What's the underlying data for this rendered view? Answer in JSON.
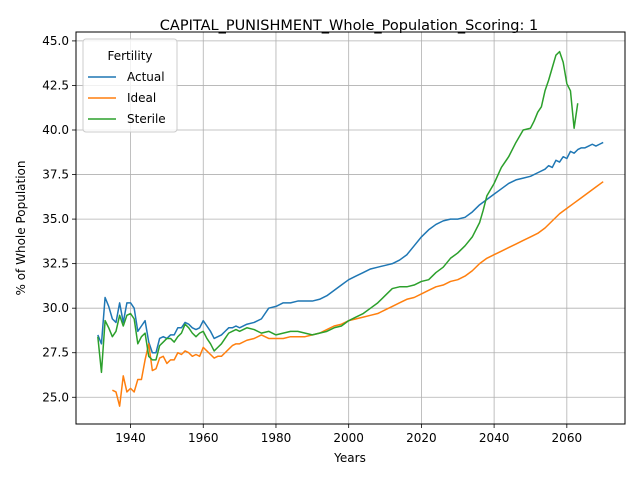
{
  "chart_data": {
    "type": "line",
    "title": "CAPITAL_PUNISHMENT_Whole_Population_Scoring: 1",
    "xlabel": "Years",
    "ylabel": "% of Whole Population",
    "xlim": [
      1925,
      2076
    ],
    "ylim": [
      23.5,
      45.5
    ],
    "xticks": [
      1940,
      1960,
      1980,
      2000,
      2020,
      2040,
      2060
    ],
    "yticks": [
      25.0,
      27.5,
      30.0,
      32.5,
      35.0,
      37.5,
      40.0,
      42.5,
      45.0
    ],
    "ytick_labels": [
      "25.0",
      "27.5",
      "30.0",
      "32.5",
      "35.0",
      "37.5",
      "40.0",
      "42.5",
      "45.0"
    ],
    "grid": true,
    "legend": {
      "title": "Fertility",
      "placement": "top-left"
    },
    "series": [
      {
        "name": "Actual",
        "color": "#1f77b4",
        "points": [
          [
            1931,
            28.5
          ],
          [
            1932,
            28.0
          ],
          [
            1933,
            30.6
          ],
          [
            1934,
            30.1
          ],
          [
            1935,
            29.4
          ],
          [
            1936,
            29.2
          ],
          [
            1937,
            30.3
          ],
          [
            1938,
            29.2
          ],
          [
            1939,
            30.3
          ],
          [
            1940,
            30.3
          ],
          [
            1941,
            30.0
          ],
          [
            1942,
            28.7
          ],
          [
            1943,
            29.0
          ],
          [
            1944,
            29.3
          ],
          [
            1945,
            28.1
          ],
          [
            1946,
            27.5
          ],
          [
            1947,
            27.5
          ],
          [
            1948,
            28.3
          ],
          [
            1949,
            28.4
          ],
          [
            1950,
            28.3
          ],
          [
            1951,
            28.5
          ],
          [
            1952,
            28.5
          ],
          [
            1953,
            28.9
          ],
          [
            1954,
            28.9
          ],
          [
            1955,
            29.2
          ],
          [
            1956,
            29.1
          ],
          [
            1957,
            28.9
          ],
          [
            1958,
            28.8
          ],
          [
            1959,
            28.9
          ],
          [
            1960,
            29.3
          ],
          [
            1961,
            29.0
          ],
          [
            1962,
            28.7
          ],
          [
            1963,
            28.3
          ],
          [
            1964,
            28.4
          ],
          [
            1965,
            28.5
          ],
          [
            1966,
            28.7
          ],
          [
            1967,
            28.9
          ],
          [
            1968,
            28.9
          ],
          [
            1969,
            29.0
          ],
          [
            1970,
            28.9
          ],
          [
            1972,
            29.1
          ],
          [
            1974,
            29.2
          ],
          [
            1976,
            29.4
          ],
          [
            1978,
            30.0
          ],
          [
            1980,
            30.1
          ],
          [
            1982,
            30.3
          ],
          [
            1984,
            30.3
          ],
          [
            1986,
            30.4
          ],
          [
            1988,
            30.4
          ],
          [
            1990,
            30.4
          ],
          [
            1992,
            30.5
          ],
          [
            1994,
            30.7
          ],
          [
            1996,
            31.0
          ],
          [
            1998,
            31.3
          ],
          [
            2000,
            31.6
          ],
          [
            2002,
            31.8
          ],
          [
            2004,
            32.0
          ],
          [
            2006,
            32.2
          ],
          [
            2008,
            32.3
          ],
          [
            2010,
            32.4
          ],
          [
            2012,
            32.5
          ],
          [
            2014,
            32.7
          ],
          [
            2016,
            33.0
          ],
          [
            2018,
            33.5
          ],
          [
            2020,
            34.0
          ],
          [
            2022,
            34.4
          ],
          [
            2024,
            34.7
          ],
          [
            2026,
            34.9
          ],
          [
            2028,
            35.0
          ],
          [
            2030,
            35.0
          ],
          [
            2032,
            35.1
          ],
          [
            2034,
            35.4
          ],
          [
            2036,
            35.8
          ],
          [
            2038,
            36.1
          ],
          [
            2040,
            36.4
          ],
          [
            2042,
            36.7
          ],
          [
            2044,
            37.0
          ],
          [
            2046,
            37.2
          ],
          [
            2048,
            37.3
          ],
          [
            2050,
            37.4
          ],
          [
            2052,
            37.6
          ],
          [
            2054,
            37.8
          ],
          [
            2055,
            38.0
          ],
          [
            2056,
            37.9
          ],
          [
            2057,
            38.3
          ],
          [
            2058,
            38.2
          ],
          [
            2059,
            38.5
          ],
          [
            2060,
            38.4
          ],
          [
            2061,
            38.8
          ],
          [
            2062,
            38.7
          ],
          [
            2063,
            38.9
          ],
          [
            2064,
            39.0
          ],
          [
            2065,
            39.0
          ],
          [
            2066,
            39.1
          ],
          [
            2067,
            39.2
          ],
          [
            2068,
            39.1
          ],
          [
            2069,
            39.2
          ],
          [
            2070,
            39.3
          ]
        ]
      },
      {
        "name": "Ideal",
        "color": "#ff7f0e",
        "points": [
          [
            1935,
            25.4
          ],
          [
            1936,
            25.3
          ],
          [
            1937,
            24.5
          ],
          [
            1938,
            26.2
          ],
          [
            1939,
            25.3
          ],
          [
            1940,
            25.5
          ],
          [
            1941,
            25.3
          ],
          [
            1942,
            26.0
          ],
          [
            1943,
            26.0
          ],
          [
            1944,
            27.1
          ],
          [
            1945,
            28.0
          ],
          [
            1946,
            26.5
          ],
          [
            1947,
            26.6
          ],
          [
            1948,
            27.2
          ],
          [
            1949,
            27.3
          ],
          [
            1950,
            26.9
          ],
          [
            1951,
            27.1
          ],
          [
            1952,
            27.1
          ],
          [
            1953,
            27.5
          ],
          [
            1954,
            27.4
          ],
          [
            1955,
            27.6
          ],
          [
            1956,
            27.5
          ],
          [
            1957,
            27.3
          ],
          [
            1958,
            27.4
          ],
          [
            1959,
            27.3
          ],
          [
            1960,
            27.8
          ],
          [
            1961,
            27.6
          ],
          [
            1962,
            27.4
          ],
          [
            1963,
            27.2
          ],
          [
            1964,
            27.3
          ],
          [
            1965,
            27.3
          ],
          [
            1966,
            27.5
          ],
          [
            1967,
            27.7
          ],
          [
            1968,
            27.9
          ],
          [
            1969,
            28.0
          ],
          [
            1970,
            28.0
          ],
          [
            1972,
            28.2
          ],
          [
            1974,
            28.3
          ],
          [
            1976,
            28.5
          ],
          [
            1978,
            28.3
          ],
          [
            1980,
            28.3
          ],
          [
            1982,
            28.3
          ],
          [
            1984,
            28.4
          ],
          [
            1986,
            28.4
          ],
          [
            1988,
            28.4
          ],
          [
            1990,
            28.5
          ],
          [
            1992,
            28.6
          ],
          [
            1994,
            28.8
          ],
          [
            1996,
            29.0
          ],
          [
            1998,
            29.1
          ],
          [
            2000,
            29.3
          ],
          [
            2002,
            29.4
          ],
          [
            2004,
            29.5
          ],
          [
            2006,
            29.6
          ],
          [
            2008,
            29.7
          ],
          [
            2010,
            29.9
          ],
          [
            2012,
            30.1
          ],
          [
            2014,
            30.3
          ],
          [
            2016,
            30.5
          ],
          [
            2018,
            30.6
          ],
          [
            2020,
            30.8
          ],
          [
            2022,
            31.0
          ],
          [
            2024,
            31.2
          ],
          [
            2026,
            31.3
          ],
          [
            2028,
            31.5
          ],
          [
            2030,
            31.6
          ],
          [
            2032,
            31.8
          ],
          [
            2034,
            32.1
          ],
          [
            2036,
            32.5
          ],
          [
            2038,
            32.8
          ],
          [
            2040,
            33.0
          ],
          [
            2042,
            33.2
          ],
          [
            2044,
            33.4
          ],
          [
            2046,
            33.6
          ],
          [
            2048,
            33.8
          ],
          [
            2050,
            34.0
          ],
          [
            2052,
            34.2
          ],
          [
            2054,
            34.5
          ],
          [
            2056,
            34.9
          ],
          [
            2058,
            35.3
          ],
          [
            2060,
            35.6
          ],
          [
            2062,
            35.9
          ],
          [
            2064,
            36.2
          ],
          [
            2066,
            36.5
          ],
          [
            2068,
            36.8
          ],
          [
            2070,
            37.1
          ]
        ]
      },
      {
        "name": "Sterile",
        "color": "#2ca02c",
        "points": [
          [
            1931,
            28.4
          ],
          [
            1932,
            26.4
          ],
          [
            1933,
            29.3
          ],
          [
            1934,
            28.9
          ],
          [
            1935,
            28.4
          ],
          [
            1936,
            28.7
          ],
          [
            1937,
            29.6
          ],
          [
            1938,
            29.0
          ],
          [
            1939,
            29.6
          ],
          [
            1940,
            29.7
          ],
          [
            1941,
            29.4
          ],
          [
            1942,
            28.0
          ],
          [
            1943,
            28.4
          ],
          [
            1944,
            28.6
          ],
          [
            1945,
            27.3
          ],
          [
            1946,
            27.1
          ],
          [
            1947,
            27.1
          ],
          [
            1948,
            27.9
          ],
          [
            1949,
            28.1
          ],
          [
            1950,
            28.3
          ],
          [
            1951,
            28.3
          ],
          [
            1952,
            28.1
          ],
          [
            1953,
            28.4
          ],
          [
            1954,
            28.6
          ],
          [
            1955,
            29.1
          ],
          [
            1956,
            28.9
          ],
          [
            1957,
            28.6
          ],
          [
            1958,
            28.4
          ],
          [
            1959,
            28.6
          ],
          [
            1960,
            28.7
          ],
          [
            1961,
            28.3
          ],
          [
            1962,
            28.0
          ],
          [
            1963,
            27.6
          ],
          [
            1964,
            27.8
          ],
          [
            1965,
            28.0
          ],
          [
            1966,
            28.3
          ],
          [
            1967,
            28.6
          ],
          [
            1968,
            28.7
          ],
          [
            1969,
            28.8
          ],
          [
            1970,
            28.7
          ],
          [
            1972,
            28.9
          ],
          [
            1974,
            28.8
          ],
          [
            1976,
            28.6
          ],
          [
            1978,
            28.7
          ],
          [
            1980,
            28.5
          ],
          [
            1982,
            28.6
          ],
          [
            1984,
            28.7
          ],
          [
            1986,
            28.7
          ],
          [
            1988,
            28.6
          ],
          [
            1990,
            28.5
          ],
          [
            1992,
            28.6
          ],
          [
            1994,
            28.7
          ],
          [
            1996,
            28.9
          ],
          [
            1998,
            29.0
          ],
          [
            2000,
            29.3
          ],
          [
            2002,
            29.5
          ],
          [
            2004,
            29.7
          ],
          [
            2006,
            30.0
          ],
          [
            2008,
            30.3
          ],
          [
            2010,
            30.7
          ],
          [
            2012,
            31.1
          ],
          [
            2014,
            31.2
          ],
          [
            2016,
            31.2
          ],
          [
            2018,
            31.3
          ],
          [
            2020,
            31.5
          ],
          [
            2022,
            31.6
          ],
          [
            2024,
            32.0
          ],
          [
            2026,
            32.3
          ],
          [
            2028,
            32.8
          ],
          [
            2030,
            33.1
          ],
          [
            2032,
            33.5
          ],
          [
            2034,
            34.0
          ],
          [
            2036,
            34.8
          ],
          [
            2037,
            35.5
          ],
          [
            2038,
            36.3
          ],
          [
            2040,
            37.0
          ],
          [
            2042,
            37.9
          ],
          [
            2044,
            38.5
          ],
          [
            2046,
            39.3
          ],
          [
            2048,
            40.0
          ],
          [
            2050,
            40.1
          ],
          [
            2051,
            40.5
          ],
          [
            2052,
            41.0
          ],
          [
            2053,
            41.3
          ],
          [
            2054,
            42.2
          ],
          [
            2055,
            42.8
          ],
          [
            2056,
            43.5
          ],
          [
            2057,
            44.2
          ],
          [
            2058,
            44.4
          ],
          [
            2059,
            43.8
          ],
          [
            2060,
            42.6
          ],
          [
            2061,
            42.2
          ],
          [
            2062,
            40.1
          ],
          [
            2063,
            41.5
          ]
        ]
      }
    ]
  }
}
